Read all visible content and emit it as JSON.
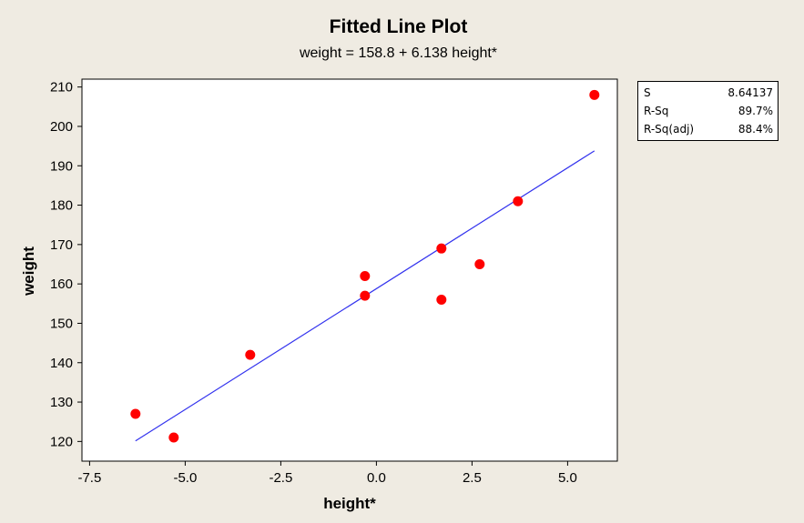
{
  "chart_data": {
    "type": "scatter",
    "title": "Fitted Line Plot",
    "subtitle": "weight =  158.8 + 6.138 height*",
    "xlabel": "height*",
    "ylabel": "weight",
    "xlim": [
      -7.7,
      6.3
    ],
    "ylim": [
      115,
      212
    ],
    "xticks": [
      -7.5,
      -5.0,
      -2.5,
      0.0,
      2.5,
      5.0
    ],
    "xtick_labels": [
      "-7.5",
      "-5.0",
      "-2.5",
      "0.0",
      "2.5",
      "5.0"
    ],
    "yticks": [
      120,
      130,
      140,
      150,
      160,
      170,
      180,
      190,
      200,
      210
    ],
    "ytick_labels": [
      "120",
      "130",
      "140",
      "150",
      "160",
      "170",
      "180",
      "190",
      "200",
      "210"
    ],
    "points": [
      {
        "x": -6.3,
        "y": 127
      },
      {
        "x": -5.3,
        "y": 121
      },
      {
        "x": -3.3,
        "y": 142
      },
      {
        "x": -0.3,
        "y": 162
      },
      {
        "x": -0.3,
        "y": 157
      },
      {
        "x": 1.7,
        "y": 169
      },
      {
        "x": 1.7,
        "y": 156
      },
      {
        "x": 2.7,
        "y": 165
      },
      {
        "x": 3.7,
        "y": 181
      },
      {
        "x": 5.7,
        "y": 208
      }
    ],
    "fit": {
      "intercept": 158.8,
      "slope": 6.138,
      "x_range": [
        -6.3,
        5.7
      ]
    },
    "point_color": "#ff0000",
    "line_color": "#3333ee",
    "grid": false
  },
  "stats": [
    {
      "label": "S",
      "value": "8.64137"
    },
    {
      "label": "R-Sq",
      "value": "89.7%"
    },
    {
      "label": "R-Sq(adj)",
      "value": "88.4%"
    }
  ]
}
